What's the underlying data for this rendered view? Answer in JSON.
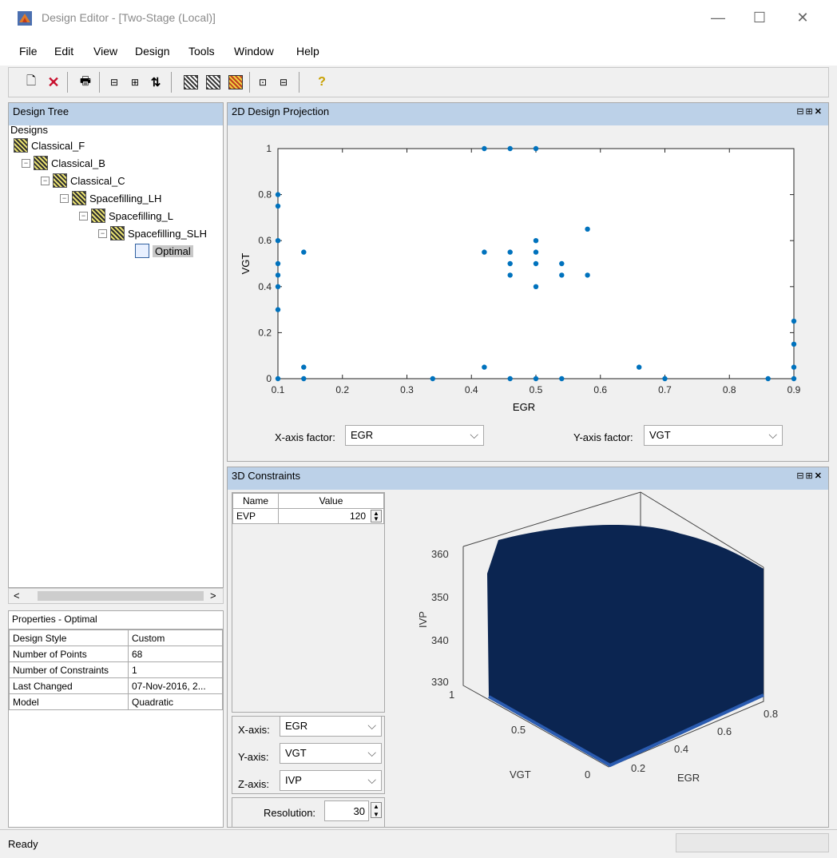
{
  "window": {
    "title": "Design Editor - [Two-Stage (Local)]",
    "min": "—",
    "max": "☐",
    "close": "✕"
  },
  "menu": [
    "File",
    "Edit",
    "View",
    "Design",
    "Tools",
    "Window",
    "Help"
  ],
  "tree": {
    "header": "Design Tree",
    "nodes": [
      "Designs",
      "Classical_F",
      "Classical_B",
      "Classical_C",
      "Spacefilling_LH",
      "Spacefilling_L",
      "Spacefilling_SLH",
      "Optimal"
    ]
  },
  "properties": {
    "header": "Properties - Optimal",
    "rows": [
      [
        "Design Style",
        "Custom"
      ],
      [
        "Number of Points",
        "68"
      ],
      [
        "Number of Constraints",
        "1"
      ],
      [
        "Last Changed",
        "07-Nov-2016, 2..."
      ],
      [
        "Model",
        "Quadratic"
      ]
    ]
  },
  "projection": {
    "header": "2D Design Projection",
    "x_factor_label": "X-axis factor:",
    "x_factor": "EGR",
    "y_factor_label": "Y-axis factor:",
    "y_factor": "VGT"
  },
  "chart_data": {
    "type": "scatter",
    "xlabel": "EGR",
    "ylabel": "VGT",
    "xlim": [
      0.1,
      0.9
    ],
    "ylim": [
      0,
      1
    ],
    "xticks": [
      "0.1",
      "0.2",
      "0.3",
      "0.4",
      "0.5",
      "0.6",
      "0.7",
      "0.8",
      "0.9"
    ],
    "yticks": [
      "0",
      "0.2",
      "0.4",
      "0.6",
      "0.8",
      "1"
    ],
    "points": [
      [
        0.1,
        0
      ],
      [
        0.1,
        0.3
      ],
      [
        0.1,
        0.4
      ],
      [
        0.1,
        0.45
      ],
      [
        0.1,
        0.5
      ],
      [
        0.1,
        0.6
      ],
      [
        0.1,
        0.75
      ],
      [
        0.1,
        0.8
      ],
      [
        0.14,
        0
      ],
      [
        0.14,
        0.05
      ],
      [
        0.14,
        0.55
      ],
      [
        0.34,
        0
      ],
      [
        0.42,
        0.05
      ],
      [
        0.42,
        0.55
      ],
      [
        0.42,
        1
      ],
      [
        0.46,
        0
      ],
      [
        0.46,
        0.45
      ],
      [
        0.46,
        0.5
      ],
      [
        0.46,
        0.55
      ],
      [
        0.46,
        1
      ],
      [
        0.5,
        0
      ],
      [
        0.5,
        0.4
      ],
      [
        0.5,
        0.5
      ],
      [
        0.5,
        0.55
      ],
      [
        0.5,
        0.6
      ],
      [
        0.5,
        1
      ],
      [
        0.54,
        0
      ],
      [
        0.54,
        0.45
      ],
      [
        0.54,
        0.5
      ],
      [
        0.58,
        0.45
      ],
      [
        0.58,
        0.65
      ],
      [
        0.66,
        0.05
      ],
      [
        0.7,
        0
      ],
      [
        0.86,
        0
      ],
      [
        0.9,
        0
      ],
      [
        0.9,
        0.05
      ],
      [
        0.9,
        0.15
      ],
      [
        0.9,
        0.25
      ]
    ]
  },
  "constraints": {
    "header": "3D Constraints",
    "columns": [
      "Name",
      "Value"
    ],
    "rows": [
      [
        "EVP",
        "120"
      ]
    ],
    "x_axis_label": "X-axis:",
    "x_axis": "EGR",
    "y_axis_label": "Y-axis:",
    "y_axis": "VGT",
    "z_axis_label": "Z-axis:",
    "z_axis": "IVP",
    "resolution_label": "Resolution:",
    "resolution": "30",
    "plot": {
      "zlabel": "IVP",
      "ylabel": "VGT",
      "xlabel": "EGR",
      "zticks": [
        "360",
        "350",
        "340",
        "330"
      ],
      "yticks": [
        "1",
        "0.5",
        "0"
      ],
      "xticks": [
        "0.2",
        "0.4",
        "0.6",
        "0.8"
      ],
      "fill_color": "#0b2551"
    }
  },
  "status": {
    "text": "Ready"
  }
}
